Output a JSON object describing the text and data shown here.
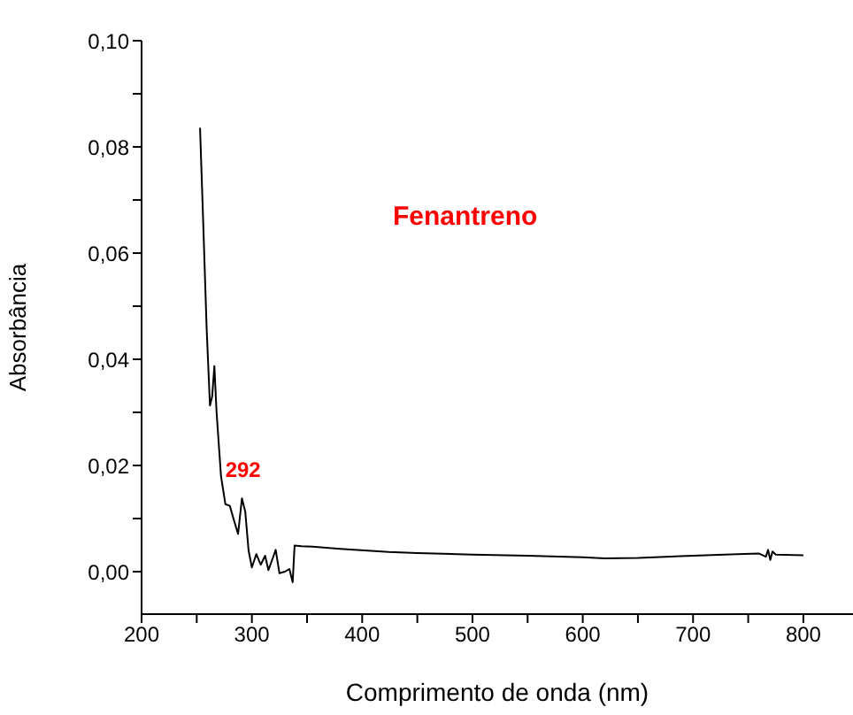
{
  "chart_data": {
    "type": "line",
    "xlabel": "Comprimento de onda (nm)",
    "ylabel": "Absorbância",
    "annotations": [
      "Fenantreno",
      {
        "text": "292",
        "x": 292,
        "y": 0.0138
      }
    ],
    "xlim": [
      200,
      845
    ],
    "ylim": [
      -0.008,
      0.1
    ],
    "xticks": [
      200,
      {
        "value": 250,
        "label": null
      },
      300,
      {
        "value": 350,
        "label": null
      },
      400,
      {
        "value": 450,
        "label": null
      },
      500,
      {
        "value": 550,
        "label": null
      },
      600,
      {
        "value": 650,
        "label": null
      },
      700,
      {
        "value": 750,
        "label": null
      },
      800
    ],
    "yticks": [
      {
        "value": 0,
        "label": "0,00"
      },
      {
        "value": 0.01,
        "label": null
      },
      {
        "value": 0.02,
        "label": "0,02"
      },
      {
        "value": 0.03,
        "label": null
      },
      {
        "value": 0.04,
        "label": "0,04"
      },
      {
        "value": 0.05,
        "label": null
      },
      {
        "value": 0.06,
        "label": "0,06"
      },
      {
        "value": 0.07,
        "label": null
      },
      {
        "value": 0.08,
        "label": "0,08"
      },
      {
        "value": 0.09,
        "label": null
      },
      {
        "value": 0.1,
        "label": "0,10"
      }
    ],
    "series": [
      {
        "color": "#000000",
        "x": [
          253,
          256,
          259,
          262,
          264,
          266,
          268,
          272,
          276,
          280,
          284,
          287.5,
          291,
          294,
          297,
          300,
          304,
          308,
          312,
          315,
          318,
          321.6,
          325,
          330,
          334,
          337,
          338.7,
          345,
          355,
          380,
          424,
          450,
          500,
          550,
          600,
          620,
          650,
          700,
          740,
          760,
          766,
          768,
          770,
          772,
          775,
          800
        ],
        "values": [
          0.0836,
          0.065,
          0.0458,
          0.0313,
          0.033,
          0.0387,
          0.03,
          0.018,
          0.0127,
          0.0124,
          0.0095,
          0.0071,
          0.0138,
          0.0113,
          0.004,
          0.0008,
          0.0033,
          0.0013,
          0.003,
          0.0003,
          0.002,
          0.0041,
          -0.0003,
          0.0,
          0.0005,
          -0.002,
          0.0049,
          0.0048,
          0.0047,
          0.0043,
          0.0037,
          0.0035,
          0.0032,
          0.003,
          0.0027,
          0.0025,
          0.0026,
          0.003,
          0.0033,
          0.0034,
          0.0028,
          0.0041,
          0.0022,
          0.0038,
          0.0032,
          0.0031
        ]
      }
    ]
  }
}
